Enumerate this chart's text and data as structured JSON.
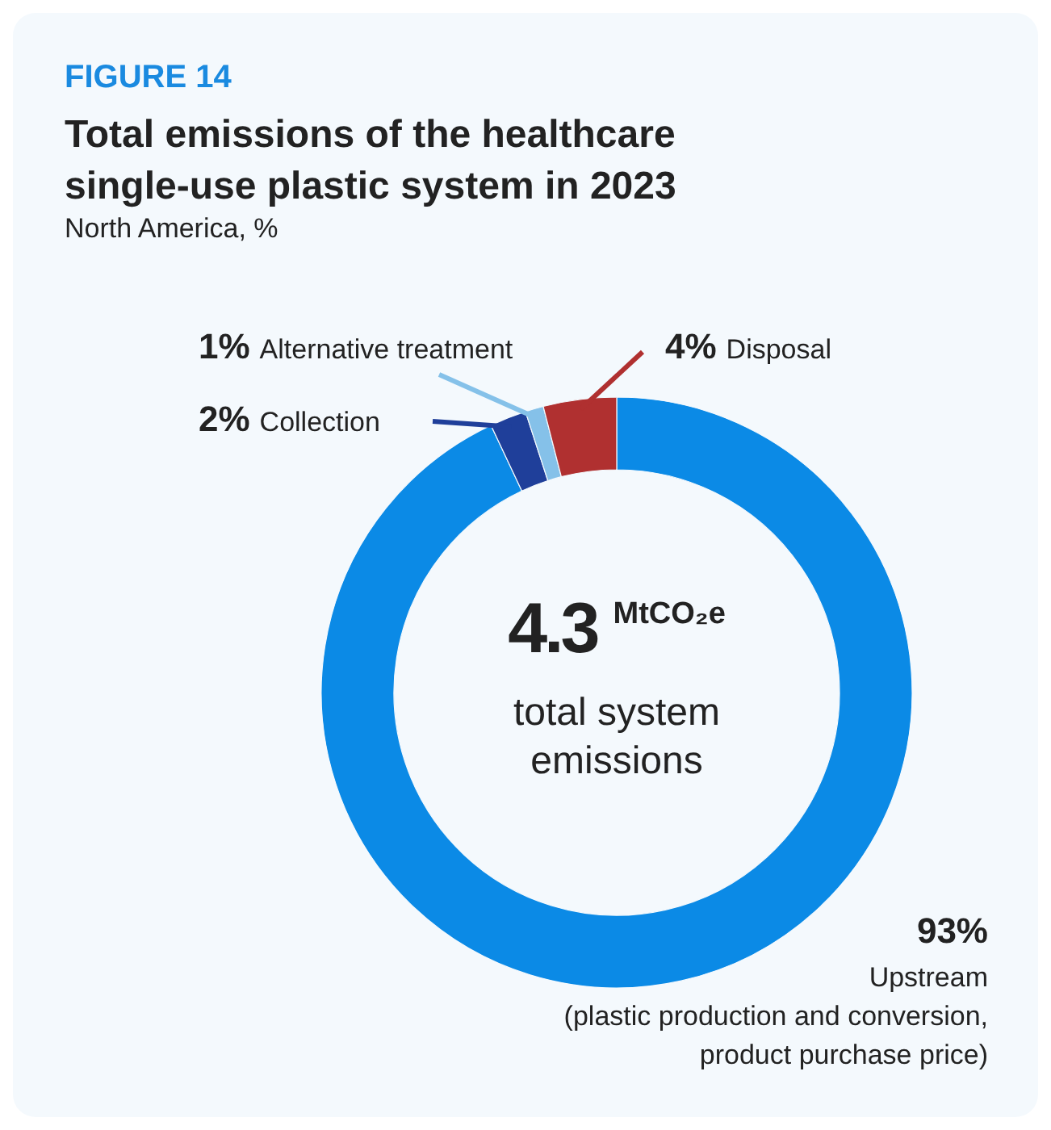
{
  "chart_data": {
    "type": "donut",
    "title": "Total emissions of the healthcare single-use plastic system in 2023",
    "subtitle": "North America, %",
    "categories": [
      "Upstream\n(plastic production and conversion,\nproduct purchase price)",
      "Collection",
      "Alternative treatment",
      "Disposal"
    ],
    "values": [
      93,
      2,
      1,
      4
    ],
    "value_labels": [
      "93%",
      "2%",
      "1%",
      "4%"
    ],
    "colors": [
      "#0b8ae6",
      "#1f3f9a",
      "#85c1e9",
      "#b03030"
    ],
    "annotations": [
      "FIGURE 14",
      "4.3 MtCO₂e",
      "total system emissions"
    ]
  }
}
